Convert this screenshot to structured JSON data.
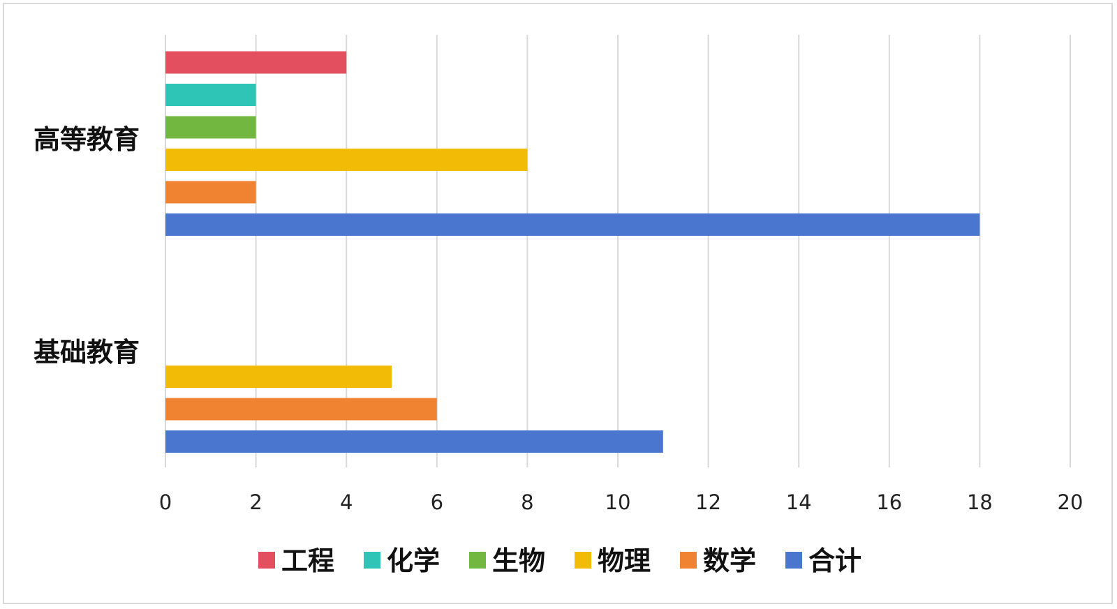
{
  "chart_data": {
    "type": "bar",
    "orientation": "horizontal",
    "categories": [
      "高等教育",
      "基础教育"
    ],
    "series": [
      {
        "name": "工程",
        "color": "#E34F5E",
        "values": [
          4,
          0
        ]
      },
      {
        "name": "化学",
        "color": "#2EC4B6",
        "values": [
          2,
          0
        ]
      },
      {
        "name": "生物",
        "color": "#72B840",
        "values": [
          2,
          0
        ]
      },
      {
        "name": "物理",
        "color": "#F2BB05",
        "values": [
          8,
          5
        ]
      },
      {
        "name": "数学",
        "color": "#F08332",
        "values": [
          2,
          6
        ]
      },
      {
        "name": "合计",
        "color": "#4A76CF",
        "values": [
          18,
          11
        ]
      }
    ],
    "xlim": [
      0,
      20
    ],
    "xticks": [
      "0",
      "2",
      "4",
      "6",
      "8",
      "10",
      "12",
      "14",
      "16",
      "18",
      "20"
    ],
    "grid": true,
    "legend": "bottom",
    "title": "",
    "xlabel": "",
    "ylabel": ""
  }
}
